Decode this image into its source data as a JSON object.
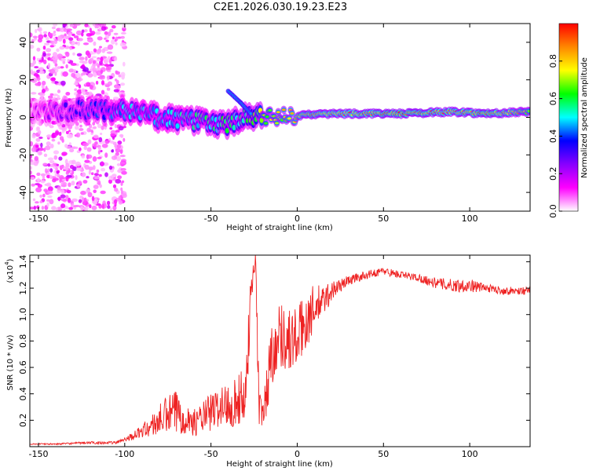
{
  "title": "C2E1.2026.030.19.23.E23",
  "chart_data": [
    {
      "type": "heatmap",
      "title": "C2E1.2026.030.19.23.E23",
      "xlabel": "Height of straight line (km)",
      "ylabel": "Frequency (Hz)",
      "xlim": [
        -155,
        135
      ],
      "ylim": [
        -50,
        50
      ],
      "x_ticks": [
        -150,
        -100,
        -50,
        0,
        50,
        100
      ],
      "y_ticks": [
        -40,
        -20,
        0,
        20,
        40
      ],
      "colorbar": {
        "label": "Normalized spectral amplitude",
        "range": [
          0.0,
          1.0
        ],
        "ticks": [
          "0.0",
          "0.2",
          "0.4",
          "0.6",
          "0.8"
        ],
        "tick_values": [
          0.0,
          0.2,
          0.4,
          0.6,
          0.8
        ],
        "colors": [
          "#ffffff",
          "#ff00ff",
          "#8800ff",
          "#0000ff",
          "#00ffff",
          "#00ff00",
          "#ffff00",
          "#ff8800",
          "#ff0000"
        ]
      },
      "ridge": [
        {
          "x": -155,
          "f": 3,
          "a": 0.15
        },
        {
          "x": -130,
          "f": 4,
          "a": 0.35
        },
        {
          "x": -110,
          "f": 4,
          "a": 0.45
        },
        {
          "x": -100,
          "f": 4,
          "a": 0.5
        },
        {
          "x": -80,
          "f": 0,
          "a": 0.5
        },
        {
          "x": -60,
          "f": -2,
          "a": 0.55
        },
        {
          "x": -40,
          "f": -4,
          "a": 0.6
        },
        {
          "x": -30,
          "f": 0,
          "a": 0.6
        },
        {
          "x": -20,
          "f": 0,
          "a": 0.75
        },
        {
          "x": -10,
          "f": 0,
          "a": 0.8
        },
        {
          "x": 0,
          "f": 1,
          "a": 0.85
        },
        {
          "x": 20,
          "f": 2,
          "a": 0.9
        },
        {
          "x": 60,
          "f": 2,
          "a": 0.95
        },
        {
          "x": 90,
          "f": 3,
          "a": 0.9
        },
        {
          "x": 110,
          "f": 2,
          "a": 0.95
        },
        {
          "x": 135,
          "f": 3,
          "a": 0.8
        }
      ],
      "branch": [
        {
          "x": -40,
          "f": 14
        },
        {
          "x": -33,
          "f": 8
        },
        {
          "x": -27,
          "f": 2
        }
      ]
    },
    {
      "type": "line",
      "xlabel": "Height of straight line (km)",
      "ylabel": "SNR (10 * v/v)",
      "y_scale_label": "(x10",
      "y_scale_exponent": "4",
      "xlim": [
        -155,
        135
      ],
      "ylim": [
        0.0,
        1.45
      ],
      "x_ticks": [
        -150,
        -100,
        -50,
        0,
        50,
        100
      ],
      "y_ticks": [
        0.2,
        0.4,
        0.6,
        0.8,
        1.0,
        1.2,
        1.4
      ],
      "color": "#ee2222",
      "series": [
        {
          "name": "SNR",
          "x": [
            -155,
            -140,
            -120,
            -105,
            -100,
            -95,
            -90,
            -85,
            -80,
            -75,
            -70,
            -65,
            -60,
            -55,
            -50,
            -45,
            -40,
            -35,
            -30,
            -28,
            -26,
            -24,
            -23,
            -22,
            -20,
            -18,
            -15,
            -10,
            -5,
            0,
            5,
            10,
            15,
            20,
            25,
            30,
            40,
            50,
            60,
            70,
            80,
            90,
            100,
            110,
            120,
            135
          ],
          "y": [
            0.02,
            0.02,
            0.03,
            0.03,
            0.06,
            0.08,
            0.12,
            0.15,
            0.2,
            0.24,
            0.26,
            0.22,
            0.18,
            0.22,
            0.26,
            0.3,
            0.32,
            0.34,
            0.4,
            0.9,
            1.3,
            1.42,
            0.8,
            0.3,
            0.22,
            0.4,
            0.7,
            0.86,
            0.8,
            0.82,
            0.95,
            1.05,
            1.1,
            1.18,
            1.22,
            1.26,
            1.3,
            1.33,
            1.3,
            1.28,
            1.24,
            1.22,
            1.22,
            1.2,
            1.18,
            1.18
          ],
          "noise": [
            0.005,
            0.005,
            0.01,
            0.01,
            0.02,
            0.03,
            0.05,
            0.08,
            0.12,
            0.15,
            0.18,
            0.12,
            0.1,
            0.12,
            0.15,
            0.15,
            0.18,
            0.2,
            0.2,
            0.25,
            0.15,
            0.05,
            0.3,
            0.15,
            0.1,
            0.2,
            0.25,
            0.25,
            0.25,
            0.25,
            0.22,
            0.18,
            0.12,
            0.08,
            0.05,
            0.04,
            0.03,
            0.03,
            0.03,
            0.03,
            0.04,
            0.05,
            0.05,
            0.03,
            0.03,
            0.03
          ]
        }
      ]
    }
  ]
}
